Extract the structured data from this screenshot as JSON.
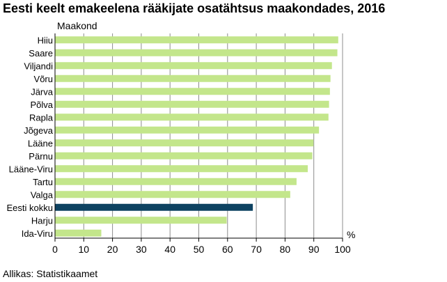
{
  "title": "Eesti keelt emakeelena rääkijate osatähtsus maakondades, 2016",
  "source": "Allikas: Statistikaamet",
  "chart_data": {
    "type": "bar",
    "orientation": "horizontal",
    "title": "Eesti keelt emakeelena rääkijate osatähtsus maakondades, 2016",
    "ylabel": "Maakond",
    "xlabel": "%",
    "xlim": [
      0,
      100
    ],
    "xticks": [
      0,
      10,
      20,
      30,
      40,
      50,
      60,
      70,
      80,
      90,
      100
    ],
    "grid": "vertical",
    "categories": [
      "Hiiu",
      "Saare",
      "Viljandi",
      "Võru",
      "Järva",
      "Põlva",
      "Rapla",
      "Jõgeva",
      "Lääne",
      "Pärnu",
      "Lääne-Viru",
      "Tartu",
      "Valga",
      "Eesti kokku",
      "Harju",
      "Ida-Viru"
    ],
    "values": [
      98.5,
      98.2,
      96.3,
      95.8,
      95.6,
      95.3,
      95.1,
      91.8,
      89.9,
      89.5,
      87.9,
      84.0,
      81.8,
      68.8,
      59.7,
      16.1
    ],
    "highlight": "Eesti kokku",
    "colors": {
      "bar": "#c3e68b",
      "highlight": "#0d4261",
      "grid": "#8c8c8c"
    }
  }
}
